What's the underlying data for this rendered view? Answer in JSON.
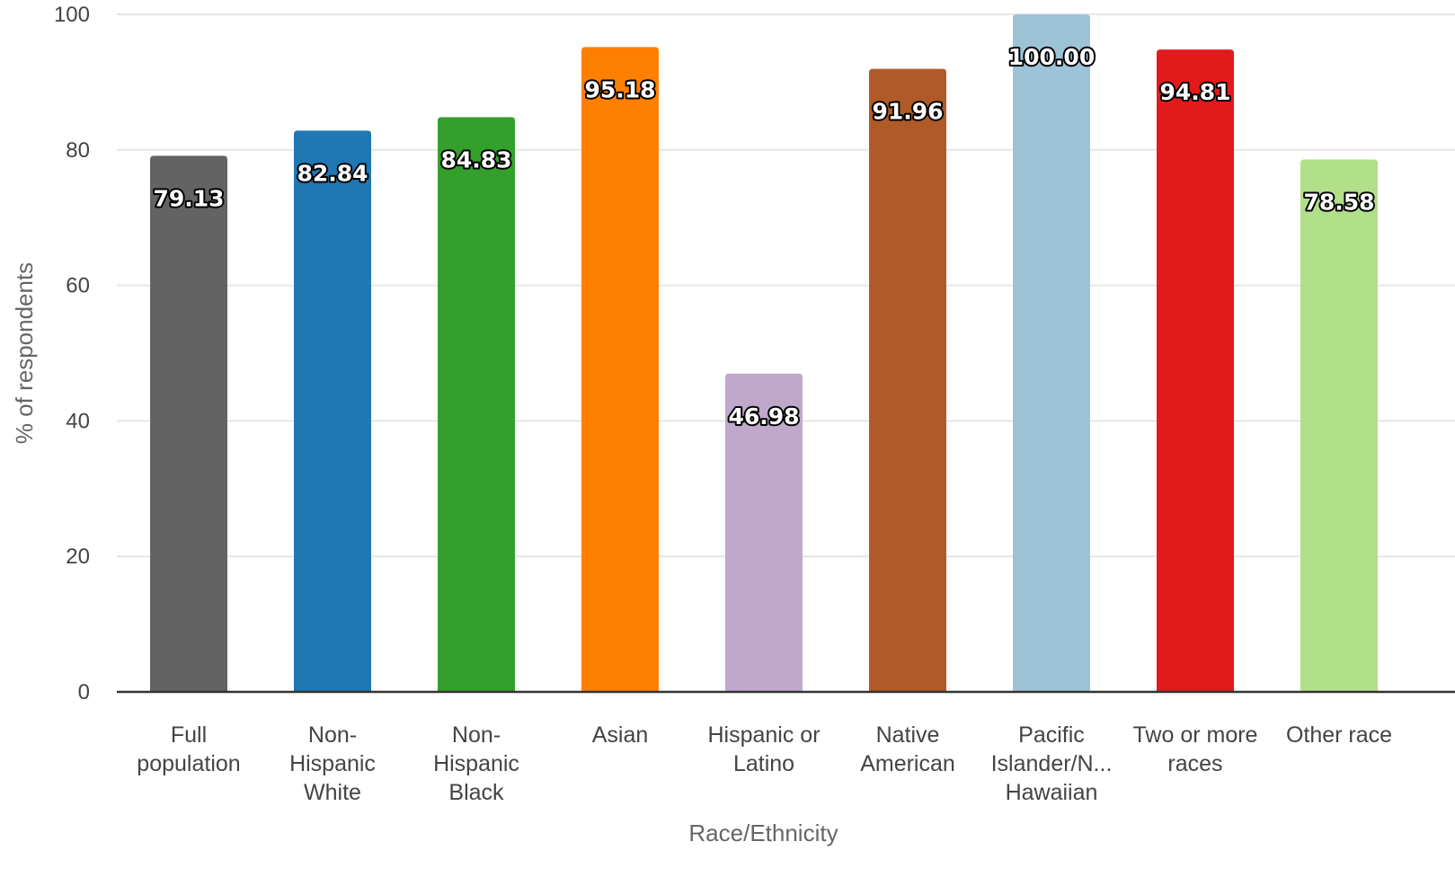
{
  "chart_data": {
    "type": "bar",
    "title": "",
    "xlabel": "Race/Ethnicity",
    "ylabel": "% of respondents",
    "ylim": [
      0,
      100
    ],
    "yticks": [
      0,
      20,
      40,
      60,
      80,
      100
    ],
    "grid": true,
    "categories": [
      [
        "Full",
        "population"
      ],
      [
        "Non-",
        "Hispanic",
        "White"
      ],
      [
        "Non-",
        "Hispanic",
        "Black"
      ],
      [
        "Asian"
      ],
      [
        "Hispanic or",
        "Latino"
      ],
      [
        "Native",
        "American"
      ],
      [
        "Pacific",
        "Islander/N...",
        "Hawaiian"
      ],
      [
        "Two or more",
        "races"
      ],
      [
        "Other race"
      ]
    ],
    "values": [
      79.13,
      82.84,
      84.83,
      95.18,
      46.98,
      91.96,
      100.0,
      94.81,
      78.58
    ],
    "value_labels": [
      "79.13",
      "82.84",
      "84.83",
      "95.18",
      "46.98",
      "91.96",
      "100.00",
      "94.81",
      "78.58"
    ],
    "colors": [
      "#636363",
      "#1f77b4",
      "#33a02c",
      "#ff7f00",
      "#c0a8cc",
      "#b05a28",
      "#9dc3d6",
      "#e31a1c",
      "#b2df8a"
    ]
  }
}
